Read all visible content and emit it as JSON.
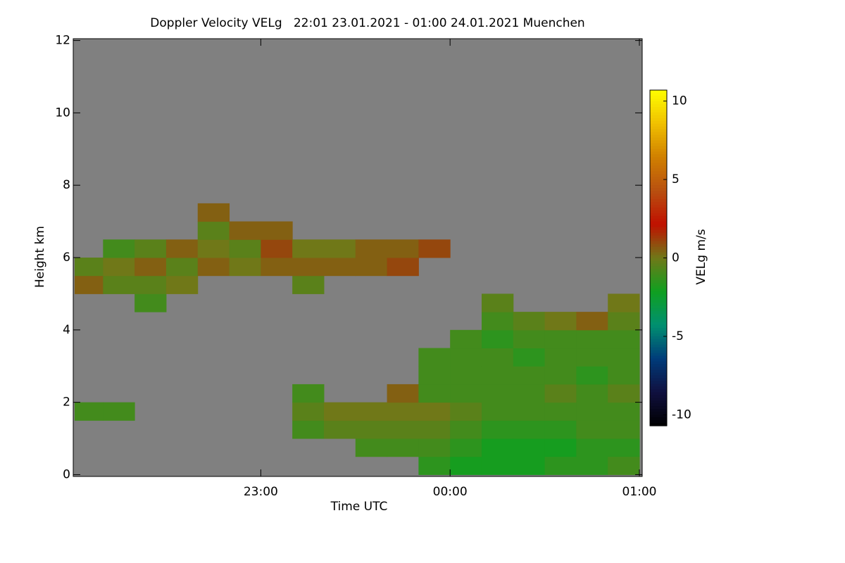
{
  "chart_data": {
    "type": "heatmap",
    "title": "Doppler Velocity VELg   22:01 23.01.2021 - 01:00 24.01.2021 Muenchen",
    "x_label": "Time UTC",
    "y_label": "Height km",
    "xlim": [
      "22:01",
      "01:00"
    ],
    "xticks": [
      "23:00",
      "00:00",
      "01:00"
    ],
    "ylim": [
      -0.05,
      12.05
    ],
    "yticks": [
      0,
      2,
      4,
      6,
      8,
      10,
      12
    ],
    "background": "#808080",
    "colorbar_label": "VELg m/s",
    "clim": [
      -10.7,
      10.7
    ],
    "colorbar_ticks": [
      -10,
      -5,
      0,
      5,
      10
    ],
    "colormap": [
      "#000000",
      "#101040",
      "#003c7a",
      "#009070",
      "#10a020",
      "#707818",
      "#c01000",
      "#b85010",
      "#d08000",
      "#f0c000",
      "#ffff00"
    ],
    "x": [
      "22:05",
      "22:05",
      "22:05",
      "22:15",
      "22:15",
      "22:15",
      "22:15",
      "22:25",
      "22:25",
      "22:25",
      "22:25",
      "22:35",
      "22:35",
      "22:35",
      "22:45",
      "22:45",
      "22:45",
      "22:45",
      "22:55",
      "22:55",
      "22:55",
      "23:05",
      "23:05",
      "23:05",
      "23:15",
      "23:15",
      "23:15",
      "23:15",
      "23:15",
      "23:15",
      "23:25",
      "23:25",
      "23:25",
      "23:25",
      "23:35",
      "23:35",
      "23:35",
      "23:35",
      "23:35",
      "23:45",
      "23:45",
      "23:45",
      "23:45",
      "23:45",
      "23:45",
      "23:55",
      "23:55",
      "23:55",
      "23:55",
      "23:55",
      "23:55",
      "23:55",
      "23:55",
      "00:05",
      "00:05",
      "00:05",
      "00:05",
      "00:05",
      "00:05",
      "00:05",
      "00:05",
      "00:15",
      "00:15",
      "00:15",
      "00:15",
      "00:15",
      "00:15",
      "00:15",
      "00:15",
      "00:15",
      "00:15",
      "00:25",
      "00:25",
      "00:25",
      "00:25",
      "00:25",
      "00:25",
      "00:25",
      "00:25",
      "00:25",
      "00:35",
      "00:35",
      "00:35",
      "00:35",
      "00:35",
      "00:35",
      "00:35",
      "00:35",
      "00:35",
      "00:45",
      "00:45",
      "00:45",
      "00:45",
      "00:45",
      "00:45",
      "00:45",
      "00:45",
      "00:45",
      "00:55",
      "00:55",
      "00:55",
      "00:55",
      "00:55",
      "00:55",
      "00:55",
      "00:55",
      "00:55",
      "00:55"
    ],
    "y": [
      5.25,
      5.75,
      1.75,
      5.25,
      5.75,
      6.25,
      1.75,
      4.75,
      5.25,
      5.75,
      6.25,
      5.25,
      5.75,
      6.25,
      5.75,
      6.25,
      6.75,
      7.25,
      5.75,
      6.25,
      6.75,
      5.75,
      6.25,
      6.75,
      5.25,
      5.75,
      6.25,
      1.25,
      1.75,
      2.25,
      5.75,
      6.25,
      1.25,
      1.75,
      5.75,
      6.25,
      0.75,
      1.25,
      1.75,
      5.75,
      6.25,
      0.75,
      1.25,
      1.75,
      2.25,
      6.25,
      0.25,
      0.75,
      1.25,
      1.75,
      2.25,
      2.75,
      3.25,
      0.25,
      0.75,
      1.25,
      1.75,
      2.25,
      2.75,
      3.25,
      3.75,
      0.25,
      0.75,
      1.25,
      1.75,
      2.25,
      2.75,
      3.25,
      3.75,
      4.25,
      4.75,
      0.25,
      0.75,
      1.25,
      1.75,
      2.25,
      2.75,
      3.25,
      3.75,
      4.25,
      0.25,
      0.75,
      1.25,
      1.75,
      2.25,
      2.75,
      3.25,
      3.75,
      4.25,
      0.25,
      0.75,
      1.25,
      1.75,
      2.25,
      2.75,
      3.25,
      3.75,
      4.25,
      0.25,
      0.75,
      1.25,
      1.75,
      2.25,
      2.75,
      3.25,
      3.75,
      4.25,
      4.75
    ],
    "values": [
      0.5,
      -0.5,
      -1,
      -0.5,
      0,
      -1,
      -1,
      -1,
      -0.5,
      0.5,
      -0.5,
      0,
      -0.5,
      0.5,
      0.5,
      0,
      -0.5,
      0.5,
      0,
      -0.5,
      0.5,
      0.5,
      1,
      0.5,
      -0.5,
      0.5,
      0,
      -1,
      -0.5,
      -1,
      0.5,
      0,
      -0.5,
      0,
      0.5,
      0.5,
      -1,
      -0.5,
      0,
      1,
      0.5,
      -1,
      -0.5,
      0,
      0.5,
      1,
      -1.5,
      -1,
      -0.5,
      0,
      -1,
      -1,
      -1,
      -2,
      -1.5,
      -1,
      -0.5,
      -1,
      -1,
      -1,
      -1,
      -2,
      -2,
      -1.5,
      -1,
      -1,
      -1,
      -1,
      -1.5,
      -1,
      -0.5,
      -2,
      -2,
      -1.5,
      -1,
      -1,
      -1,
      -1.5,
      -1,
      -0.5,
      -1.5,
      -2,
      -1.5,
      -1,
      -0.5,
      -1,
      -1,
      -1,
      0,
      -1.5,
      -1.5,
      -1,
      -1,
      -1,
      -1.5,
      -1,
      -1,
      0.5,
      -1,
      -1.5,
      -1,
      -1,
      -0.5,
      -1,
      -1,
      -1,
      -0.5,
      0
    ]
  }
}
